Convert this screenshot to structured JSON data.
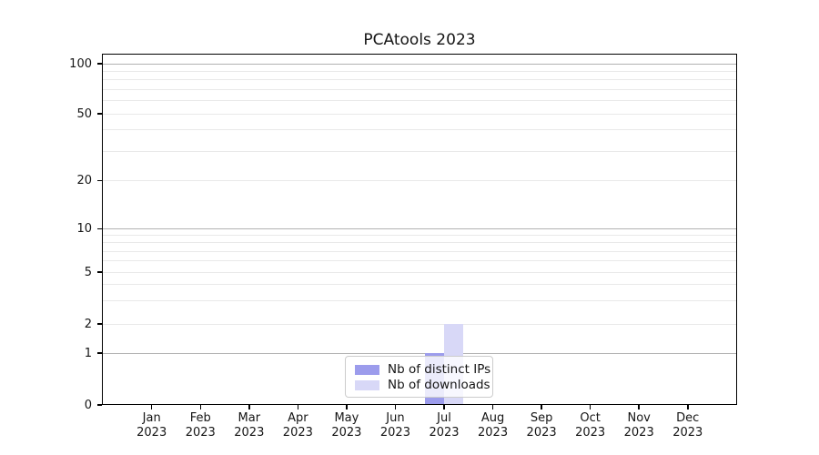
{
  "figure": {
    "title": "PCAtools 2023"
  },
  "chart_data": {
    "type": "bar",
    "title": "PCAtools 2023",
    "year": "2023",
    "months": [
      "Jan",
      "Feb",
      "Mar",
      "Apr",
      "May",
      "Jun",
      "Jul",
      "Aug",
      "Sep",
      "Oct",
      "Nov",
      "Dec"
    ],
    "categories": [
      "Jan 2023",
      "Feb 2023",
      "Mar 2023",
      "Apr 2023",
      "May 2023",
      "Jun 2023",
      "Jul 2023",
      "Aug 2023",
      "Sep 2023",
      "Oct 2023",
      "Nov 2023",
      "Dec 2023"
    ],
    "series": [
      {
        "name": "Nb of distinct IPs",
        "color": "#9c9cec",
        "values": [
          0,
          0,
          0,
          0,
          0,
          0,
          1,
          0,
          0,
          0,
          0,
          0
        ]
      },
      {
        "name": "Nb of downloads",
        "color": "#d8d8f7",
        "values": [
          0,
          0,
          0,
          0,
          0,
          0,
          2,
          0,
          0,
          0,
          0,
          0
        ]
      }
    ],
    "y_ticks": [
      0,
      1,
      2,
      5,
      10,
      20,
      50,
      100
    ],
    "y_scale": "symlog",
    "ylim": [
      0,
      110
    ],
    "xlabel": "",
    "ylabel": "",
    "grid": {
      "major_horizontal": true,
      "minor_horizontal": true
    },
    "legend_position": "lower center",
    "colors": {
      "major_grid": "#b2b2b2",
      "minor_grid": "#e9e9e9",
      "spine": "#000000",
      "background": "#ffffff"
    }
  }
}
